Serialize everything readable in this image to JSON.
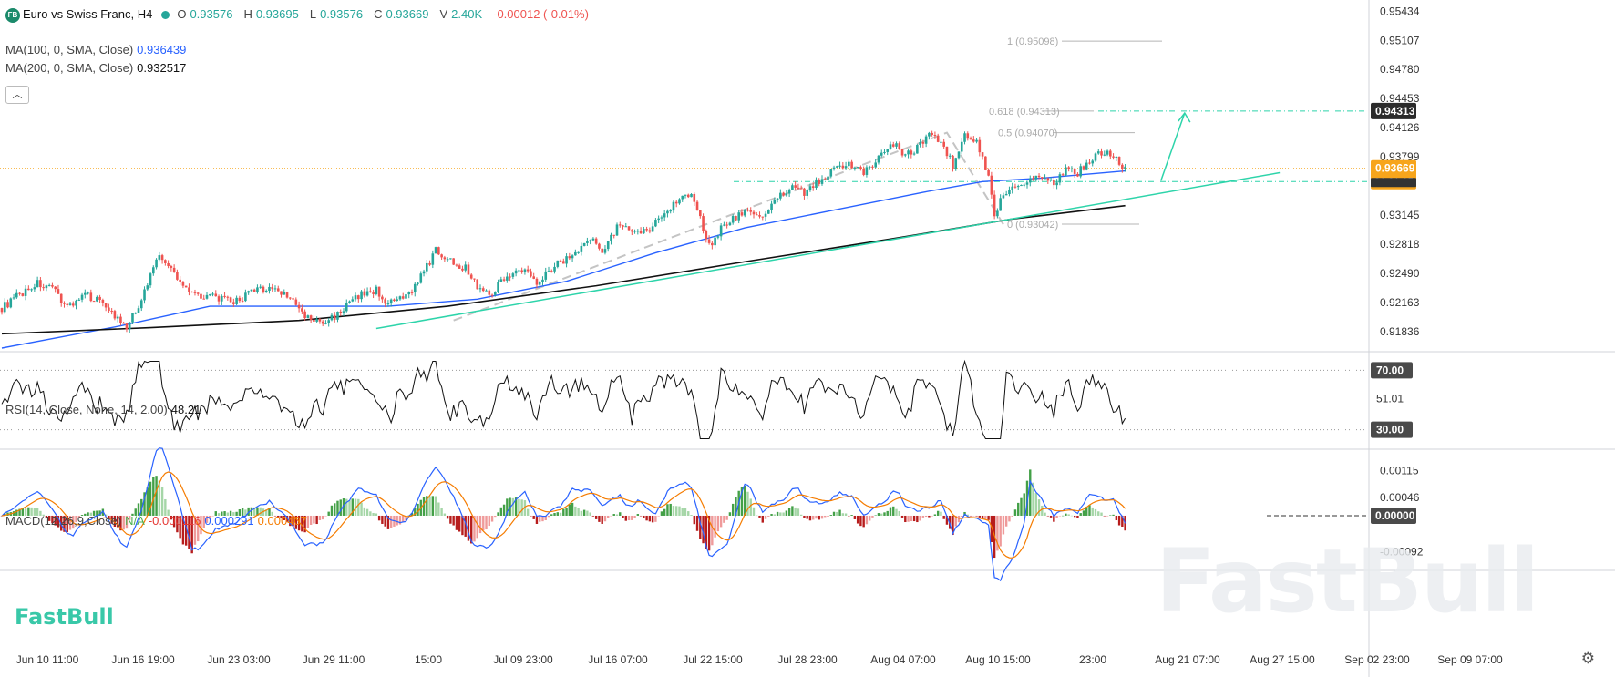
{
  "header": {
    "symbol_badge": "FB",
    "title": "Euro vs Swiss Franc, H4",
    "ohlc": [
      {
        "label": "O",
        "value": "0.93576"
      },
      {
        "label": "H",
        "value": "0.93695"
      },
      {
        "label": "L",
        "value": "0.93576"
      },
      {
        "label": "C",
        "value": "0.93669"
      }
    ],
    "volume_label": "V",
    "volume": "2.40K",
    "change": "-0.00012 (-0.01%)"
  },
  "indicators": {
    "ma100": {
      "label": "MA(100, 0, SMA, Close)",
      "value": "0.936439",
      "color": "#2962ff"
    },
    "ma200": {
      "label": "MA(200, 0, SMA, Close)",
      "value": "0.932517",
      "color": "#111111"
    },
    "rsi": {
      "label": "RSI(14, Close, None, 14, 2.00)",
      "value": "48.21"
    },
    "macd": {
      "label": "MACD(12,26,9,Close)",
      "na": "N/A",
      "hist": "-0.000116",
      "macd": "0.000291",
      "signal": "0.000407"
    }
  },
  "collapse_icon": "chevron-up-icon",
  "settings_icon": "gear-icon",
  "brand": "FastBull",
  "watermark": "FastBull",
  "colors": {
    "up": "#26a69a",
    "down": "#ef5350",
    "ma100": "#2962ff",
    "ma200": "#111111",
    "trend": "#2dd4aa",
    "price_badge": "#f7a51c",
    "macd_line": "#2962ff",
    "signal_line": "#f57c00"
  },
  "chart_data": [
    {
      "type": "candlestick",
      "title": "Euro vs Swiss Franc, H4",
      "price_axis": [
        "0.95434",
        "0.95107",
        "0.94780",
        "0.94453",
        "0.94126",
        "0.93799",
        "0.93145",
        "0.92818",
        "0.92490",
        "0.92163",
        "0.91836"
      ],
      "ylim": [
        0.9165,
        0.9556
      ],
      "last_price": "0.93669",
      "countdown": "01:01:15",
      "level_badge": "0.94313",
      "time_axis": [
        "Jun 10 11:00",
        "Jun 16 19:00",
        "Jun 23 03:00",
        "Jun 29 11:00",
        "15:00",
        "Jul 09 23:00",
        "Jul 16 07:00",
        "Jul 22 15:00",
        "Jul 28 23:00",
        "Aug 04 07:00",
        "Aug 10 15:00",
        "23:00",
        "Aug 21 07:00",
        "Aug 27 15:00",
        "Sep 02 23:00",
        "Sep 09 07:00"
      ],
      "fibonacci": [
        {
          "label": "1 (0.95098)",
          "value": 0.95098
        },
        {
          "label": "0.618 (0.94313)",
          "value": 0.94313
        },
        {
          "label": "0.5 (0.94070)",
          "value": 0.9407
        },
        {
          "label": "0 (0.93042)",
          "value": 0.93042
        }
      ],
      "support_level": 0.9352,
      "close_path": [
        [
          0,
          0.921
        ],
        [
          6,
          0.9225
        ],
        [
          12,
          0.9238
        ],
        [
          18,
          0.9228
        ],
        [
          22,
          0.9212
        ],
        [
          28,
          0.9224
        ],
        [
          34,
          0.9218
        ],
        [
          38,
          0.92
        ],
        [
          42,
          0.9186
        ],
        [
          48,
          0.9228
        ],
        [
          52,
          0.9268
        ],
        [
          55,
          0.9262
        ],
        [
          60,
          0.9238
        ],
        [
          66,
          0.9225
        ],
        [
          72,
          0.9222
        ],
        [
          78,
          0.9216
        ],
        [
          84,
          0.9228
        ],
        [
          90,
          0.9233
        ],
        [
          96,
          0.9225
        ],
        [
          102,
          0.92
        ],
        [
          108,
          0.9192
        ],
        [
          114,
          0.9206
        ],
        [
          120,
          0.9224
        ],
        [
          126,
          0.923
        ],
        [
          130,
          0.9214
        ],
        [
          136,
          0.9222
        ],
        [
          142,
          0.925
        ],
        [
          146,
          0.9275
        ],
        [
          150,
          0.9265
        ],
        [
          156,
          0.9255
        ],
        [
          160,
          0.9235
        ],
        [
          164,
          0.9225
        ],
        [
          170,
          0.9248
        ],
        [
          176,
          0.9252
        ],
        [
          180,
          0.924
        ],
        [
          186,
          0.9258
        ],
        [
          192,
          0.927
        ],
        [
          198,
          0.9287
        ],
        [
          202,
          0.9276
        ],
        [
          208,
          0.9305
        ],
        [
          212,
          0.9292
        ],
        [
          218,
          0.93
        ],
        [
          224,
          0.932
        ],
        [
          228,
          0.9335
        ],
        [
          232,
          0.934
        ],
        [
          236,
          0.93
        ],
        [
          238,
          0.928
        ],
        [
          242,
          0.93
        ],
        [
          248,
          0.9315
        ],
        [
          252,
          0.932
        ],
        [
          256,
          0.931
        ],
        [
          260,
          0.933
        ],
        [
          266,
          0.9345
        ],
        [
          270,
          0.934
        ],
        [
          274,
          0.935
        ],
        [
          280,
          0.9365
        ],
        [
          286,
          0.9372
        ],
        [
          290,
          0.936
        ],
        [
          296,
          0.9385
        ],
        [
          300,
          0.9395
        ],
        [
          304,
          0.938
        ],
        [
          308,
          0.939
        ],
        [
          312,
          0.9404
        ],
        [
          316,
          0.9398
        ],
        [
          320,
          0.937
        ],
        [
          324,
          0.9405
        ],
        [
          328,
          0.9395
        ],
        [
          332,
          0.936
        ],
        [
          334,
          0.9315
        ],
        [
          336,
          0.933
        ],
        [
          338,
          0.934
        ],
        [
          342,
          0.935
        ],
        [
          346,
          0.9355
        ],
        [
          350,
          0.9358
        ],
        [
          354,
          0.935
        ],
        [
          358,
          0.9365
        ],
        [
          362,
          0.9362
        ],
        [
          366,
          0.9375
        ],
        [
          370,
          0.9385
        ],
        [
          374,
          0.938
        ],
        [
          378,
          0.9366
        ]
      ],
      "ma100_path": [
        [
          0,
          0.9165
        ],
        [
          40,
          0.919
        ],
        [
          70,
          0.9212
        ],
        [
          100,
          0.9212
        ],
        [
          130,
          0.9212
        ],
        [
          160,
          0.922
        ],
        [
          190,
          0.924
        ],
        [
          220,
          0.9272
        ],
        [
          250,
          0.93
        ],
        [
          280,
          0.932
        ],
        [
          310,
          0.934
        ],
        [
          330,
          0.9352
        ],
        [
          350,
          0.9356
        ],
        [
          378,
          0.9364
        ]
      ],
      "ma200_path": [
        [
          0,
          0.9181
        ],
        [
          50,
          0.9188
        ],
        [
          100,
          0.9196
        ],
        [
          150,
          0.9212
        ],
        [
          200,
          0.9235
        ],
        [
          250,
          0.9262
        ],
        [
          300,
          0.9288
        ],
        [
          340,
          0.931
        ],
        [
          378,
          0.9325
        ]
      ],
      "trendline": [
        [
          126,
          0.9187
        ],
        [
          430,
          0.9362
        ]
      ],
      "projection": [
        [
          390,
          0.9353
        ],
        [
          398,
          0.9429
        ]
      ],
      "ab_pattern": [
        [
          152,
          0.9196
        ],
        [
          318,
          0.9407
        ],
        [
          337,
          0.9304
        ]
      ],
      "x_total": 460
    },
    {
      "type": "line",
      "title": "RSI(14, Close, None, 14, 2.00)",
      "levels": [
        "70.00",
        "51.01",
        "30.00"
      ],
      "last_value": "48.21",
      "ylim": [
        20,
        80
      ]
    },
    {
      "type": "bar",
      "title": "MACD(12,26,9,Close)",
      "axis": [
        "0.00115",
        "0.00046",
        "0.00000",
        "-0.00092"
      ],
      "ylim": [
        -0.0013,
        0.0016
      ]
    }
  ]
}
